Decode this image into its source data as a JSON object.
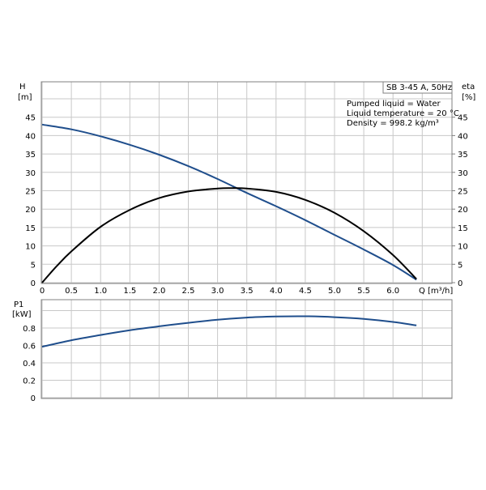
{
  "chart_data": [
    {
      "type": "line",
      "title": "SB 3-45 A, 50Hz",
      "ylabel": "H",
      "yunit": "[m]",
      "y2label": "eta",
      "y2unit": "[%]",
      "xlabel": "Q",
      "xunit": "[m³/h]",
      "xlim": [
        0,
        6.5
      ],
      "ylim": [
        0,
        50
      ],
      "y2lim": [
        0,
        50
      ],
      "xticks": [
        "0",
        "0.5",
        "1.0",
        "1.5",
        "2.0",
        "2.5",
        "3.0",
        "3.5",
        "4.0",
        "4.5",
        "5.0",
        "5.5",
        "6.0"
      ],
      "yticks": [
        "0",
        "5",
        "10",
        "15",
        "20",
        "25",
        "30",
        "35",
        "40",
        "45"
      ],
      "y2ticks": [
        "0",
        "5",
        "10",
        "15",
        "20",
        "25",
        "30",
        "35",
        "40",
        "45"
      ],
      "grid": true,
      "annotations": [
        "Pumped liquid = Water",
        "Liquid temperature = 20 °C",
        "Density = 998.2 kg/m³"
      ],
      "series": [
        {
          "axis": "left",
          "color": "#1f4e8c",
          "x": [
            0,
            0.5,
            1.0,
            1.5,
            2.0,
            2.5,
            3.0,
            3.5,
            4.0,
            4.5,
            5.0,
            5.5,
            6.0,
            6.4
          ],
          "y": [
            43,
            41.7,
            39.8,
            37.5,
            34.8,
            31.7,
            28.2,
            24.4,
            20.8,
            17.0,
            13.0,
            9.0,
            4.8,
            0.8
          ]
        },
        {
          "axis": "right",
          "color": "#000000",
          "x": [
            0,
            0.25,
            0.5,
            1.0,
            1.5,
            2.0,
            2.5,
            3.0,
            3.25,
            3.5,
            4.0,
            4.5,
            5.0,
            5.5,
            6.0,
            6.4
          ],
          "y": [
            0,
            4.5,
            8.5,
            15.2,
            19.8,
            23.0,
            24.8,
            25.6,
            25.7,
            25.6,
            24.7,
            22.5,
            19.0,
            14.0,
            7.5,
            1.0
          ]
        }
      ]
    },
    {
      "type": "line",
      "ylabel": "P1",
      "yunit": "[kW]",
      "xlim": [
        0,
        6.5
      ],
      "ylim": [
        0,
        1.0
      ],
      "yticks": [
        "0",
        "0.2",
        "0.4",
        "0.6",
        "0.8"
      ],
      "grid": true,
      "series": [
        {
          "color": "#1f4e8c",
          "x": [
            0,
            0.5,
            1.0,
            1.5,
            2.0,
            2.5,
            3.0,
            3.5,
            4.0,
            4.5,
            5.0,
            5.5,
            6.0,
            6.4
          ],
          "y": [
            0.585,
            0.66,
            0.72,
            0.775,
            0.82,
            0.86,
            0.895,
            0.92,
            0.932,
            0.935,
            0.925,
            0.905,
            0.87,
            0.83
          ]
        }
      ]
    }
  ]
}
